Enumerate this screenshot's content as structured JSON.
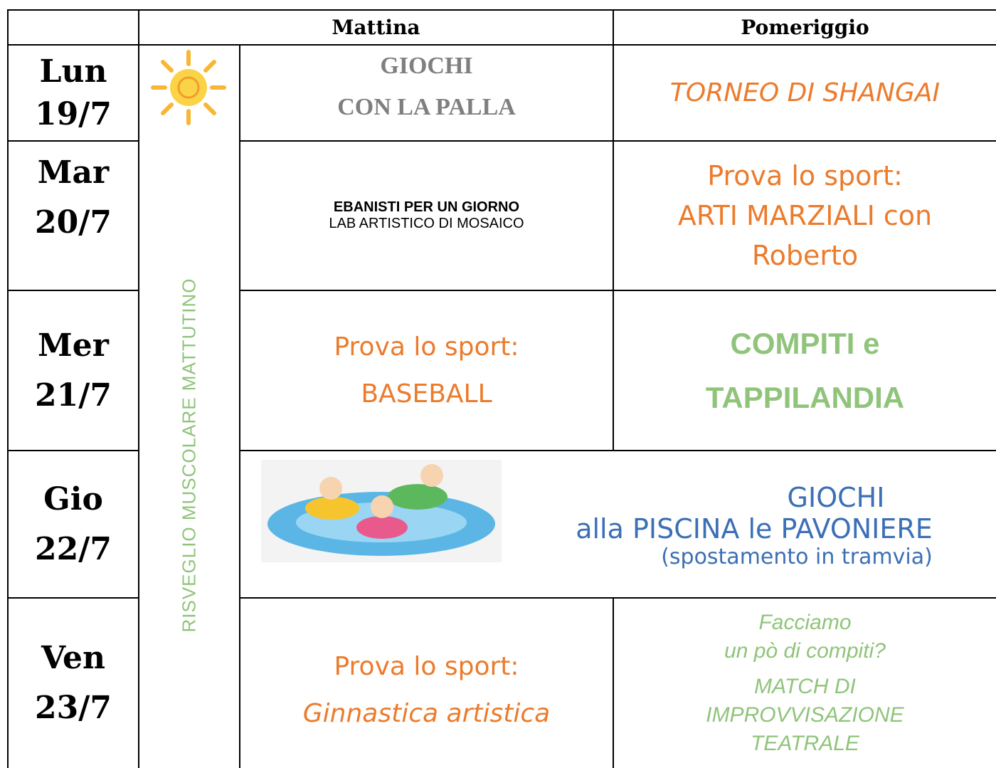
{
  "header": {
    "morning": "Mattina",
    "afternoon": "Pomeriggio"
  },
  "side_label": "RISVEGLIO MUSCOLARE MATTUTINO",
  "days": [
    {
      "day": "Lun",
      "date": "19/7",
      "morning": [
        "GIOCHI",
        "CON LA PALLA"
      ],
      "afternoon": [
        "TORNEO DI SHANGAI"
      ]
    },
    {
      "day": "Mar",
      "date": "20/7",
      "morning": [
        "EBANISTI PER UN GIORNO",
        "LAB ARTISTICO DI MOSAICO"
      ],
      "afternoon": [
        "Prova lo sport:",
        "ARTI MARZIALI con",
        "Roberto"
      ]
    },
    {
      "day": "Mer",
      "date": "21/7",
      "morning": [
        "Prova lo sport:",
        "BASEBALL"
      ],
      "afternoon": [
        "COMPITI e",
        "TAPPILANDIA"
      ]
    },
    {
      "day": "Gio",
      "date": "22/7",
      "combined": [
        "GIOCHI",
        "alla PISCINA le PAVONIERE",
        "(spostamento in tramvia)"
      ]
    },
    {
      "day": "Ven",
      "date": "23/7",
      "morning": [
        "Prova lo sport:",
        "Ginnastica artistica"
      ],
      "afternoon": [
        "Facciamo",
        "un pò di compiti?",
        "MATCH DI",
        "IMPROVVISAZIONE",
        "TEATRALE"
      ]
    }
  ]
}
